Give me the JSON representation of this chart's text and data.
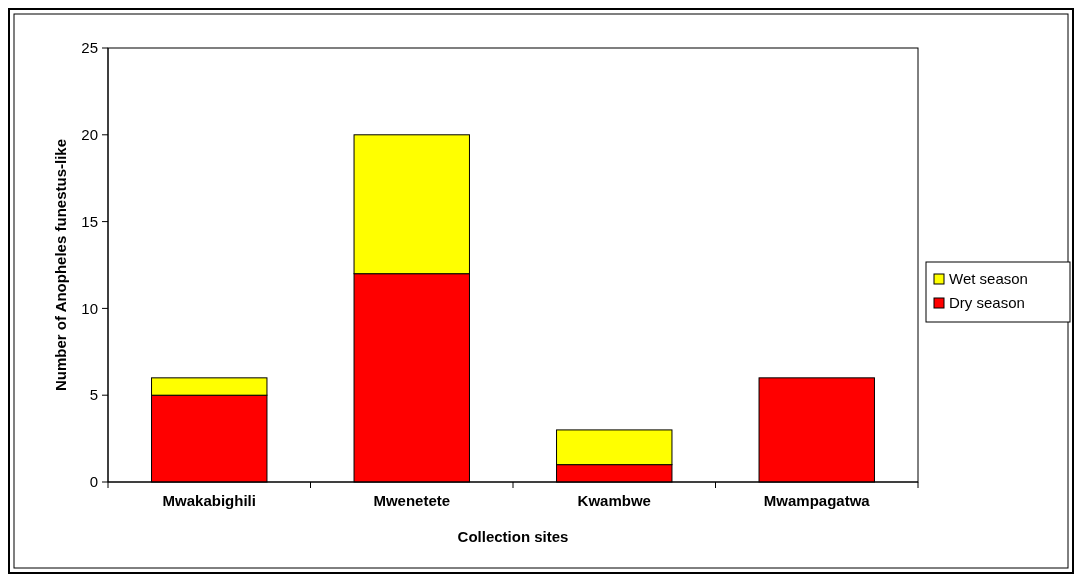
{
  "chart_data": {
    "type": "bar",
    "stacked": true,
    "xlabel": "Collection sites",
    "ylabel": "Number of Anopheles funestus-like",
    "categories": [
      "Mwakabighili",
      "Mwenetete",
      "Kwambwe",
      "Mwampagatwa"
    ],
    "series": [
      {
        "name": "Dry season",
        "color": "#ff0000",
        "values": [
          5,
          12,
          1,
          6
        ]
      },
      {
        "name": "Wet season",
        "color": "#ffff00",
        "values": [
          1,
          8,
          2,
          0
        ]
      }
    ],
    "ylim": [
      0,
      25
    ],
    "yticks": [
      0,
      5,
      10,
      15,
      20,
      25
    ],
    "grid": false,
    "legend": "right"
  }
}
